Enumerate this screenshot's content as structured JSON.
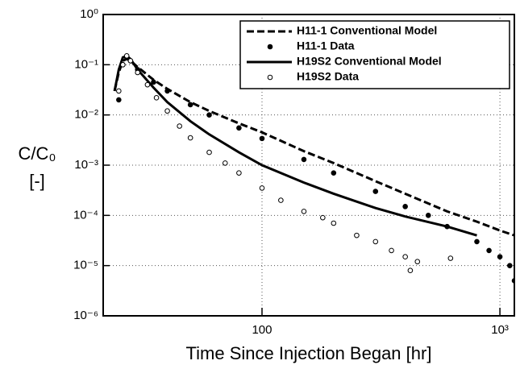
{
  "chart_data": {
    "type": "line",
    "xlabel": "Time Since Injection Began [hr]",
    "ylabel": [
      "C/C₀",
      "[-]"
    ],
    "xscale": "log",
    "yscale": "log",
    "grid": true,
    "legend": "upper right",
    "xlim": [
      21.5,
      1150
    ],
    "ylim": [
      1e-06,
      1
    ],
    "xticks": [
      100,
      {
        "value": 1000,
        "label": "10³"
      }
    ],
    "yticks": [
      {
        "value": 1e-06,
        "label": "10⁻⁶"
      },
      {
        "value": 1e-05,
        "label": "10⁻⁵"
      },
      {
        "value": 0.0001,
        "label": "10⁻⁴"
      },
      {
        "value": 0.001,
        "label": "10⁻³"
      },
      {
        "value": 0.01,
        "label": "10⁻²"
      },
      {
        "value": 0.1,
        "label": "10⁻¹"
      },
      {
        "value": 1,
        "label": "10⁰"
      }
    ],
    "series": [
      {
        "name": "H11-1 Conventional Model",
        "color": "#000000",
        "style": "dashed",
        "x": [
          24,
          25,
          26,
          27,
          28,
          30,
          35,
          40,
          50,
          60,
          80,
          100,
          150,
          200,
          300,
          400,
          600,
          800,
          1000,
          1150
        ],
        "values": [
          0.03,
          0.07,
          0.12,
          0.13,
          0.12,
          0.09,
          0.05,
          0.033,
          0.018,
          0.012,
          0.0068,
          0.0045,
          0.0019,
          0.0011,
          0.00048,
          0.00027,
          0.00012,
          7.5e-05,
          5e-05,
          4e-05
        ]
      },
      {
        "name": "H11-1 Data",
        "color": "#000000",
        "style": "markers",
        "marker": "filled",
        "x": [
          25,
          26,
          27,
          28,
          30,
          35,
          40,
          50,
          60,
          80,
          100,
          150,
          200,
          300,
          400,
          500,
          600,
          800,
          900,
          1000,
          1100,
          1150
        ],
        "values": [
          0.02,
          0.1,
          0.14,
          0.12,
          0.08,
          0.045,
          0.03,
          0.016,
          0.01,
          0.0055,
          0.0034,
          0.0013,
          0.0007,
          0.0003,
          0.00015,
          0.0001,
          6e-05,
          3e-05,
          2e-05,
          1.5e-05,
          1e-05,
          5e-06
        ]
      },
      {
        "name": "H19S2 Conventional Model",
        "color": "#000000",
        "style": "solid",
        "x": [
          24,
          25,
          26,
          27,
          28,
          30,
          35,
          40,
          50,
          60,
          80,
          100,
          150,
          200,
          300,
          400,
          600,
          800
        ],
        "values": [
          0.03,
          0.08,
          0.14,
          0.15,
          0.13,
          0.08,
          0.035,
          0.018,
          0.0075,
          0.0041,
          0.0018,
          0.001,
          0.00045,
          0.00027,
          0.00014,
          9.5e-05,
          6e-05,
          4e-05
        ]
      },
      {
        "name": "H19S2 Data",
        "color": "#000000",
        "style": "markers",
        "marker": "open",
        "x": [
          25,
          26,
          27,
          28,
          30,
          33,
          36,
          40,
          45,
          50,
          60,
          70,
          80,
          100,
          120,
          150,
          180,
          200,
          250,
          300,
          350,
          400,
          420,
          450,
          620
        ],
        "values": [
          0.03,
          0.1,
          0.15,
          0.12,
          0.07,
          0.04,
          0.022,
          0.012,
          0.006,
          0.0035,
          0.0018,
          0.0011,
          0.0007,
          0.00035,
          0.0002,
          0.00012,
          9e-05,
          7e-05,
          4e-05,
          3e-05,
          2e-05,
          1.5e-05,
          8e-06,
          1.2e-05,
          1.4e-05
        ]
      }
    ]
  }
}
